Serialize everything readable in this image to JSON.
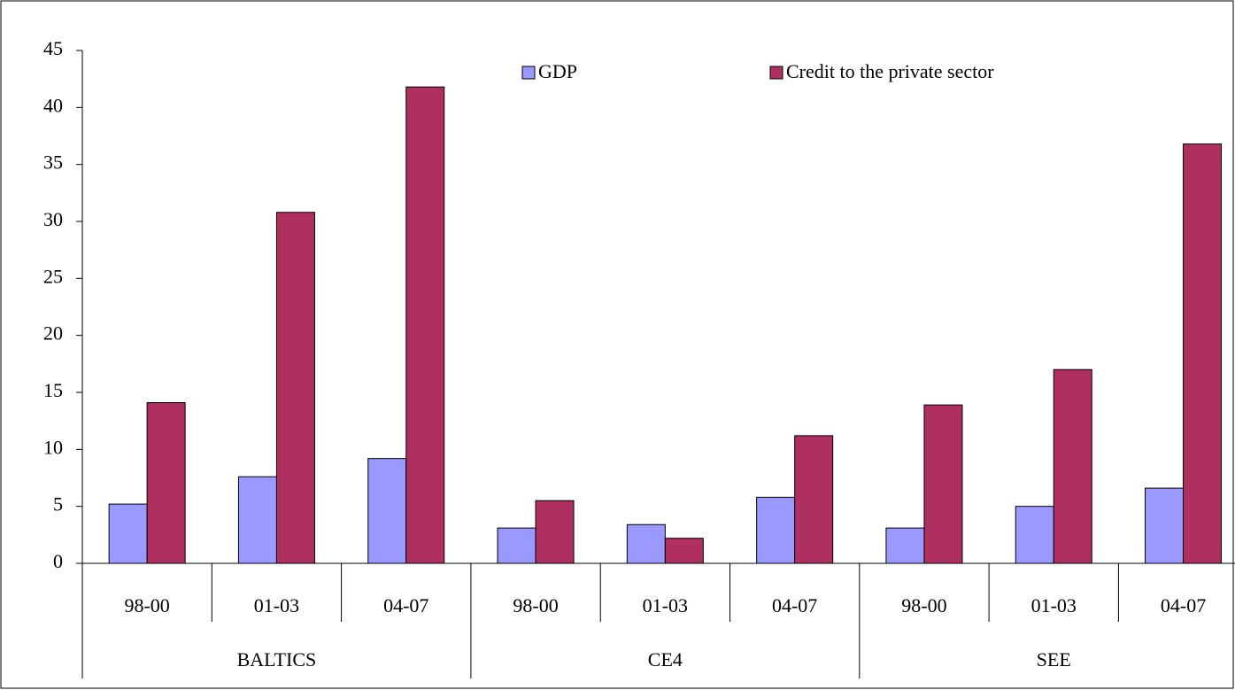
{
  "chart_data": {
    "type": "bar",
    "categories": [
      "98-00",
      "01-03",
      "04-07",
      "98-00",
      "01-03",
      "04-07",
      "98-00",
      "01-03",
      "04-07"
    ],
    "groups": [
      "BALTICS",
      "CE4",
      "SEE"
    ],
    "series": [
      {
        "name": "GDP",
        "color": "#9999ff",
        "values": [
          5.2,
          7.6,
          9.2,
          3.1,
          3.4,
          5.8,
          3.1,
          5.0,
          6.6
        ]
      },
      {
        "name": "Credit to the private sector",
        "color": "#b02f61",
        "values": [
          14.1,
          30.8,
          41.8,
          5.5,
          2.2,
          11.2,
          13.9,
          17.0,
          36.8
        ]
      }
    ],
    "ylim": [
      0,
      45
    ],
    "yticks": [
      0,
      5,
      10,
      15,
      20,
      25,
      30,
      35,
      40,
      45
    ],
    "legend": "top"
  }
}
